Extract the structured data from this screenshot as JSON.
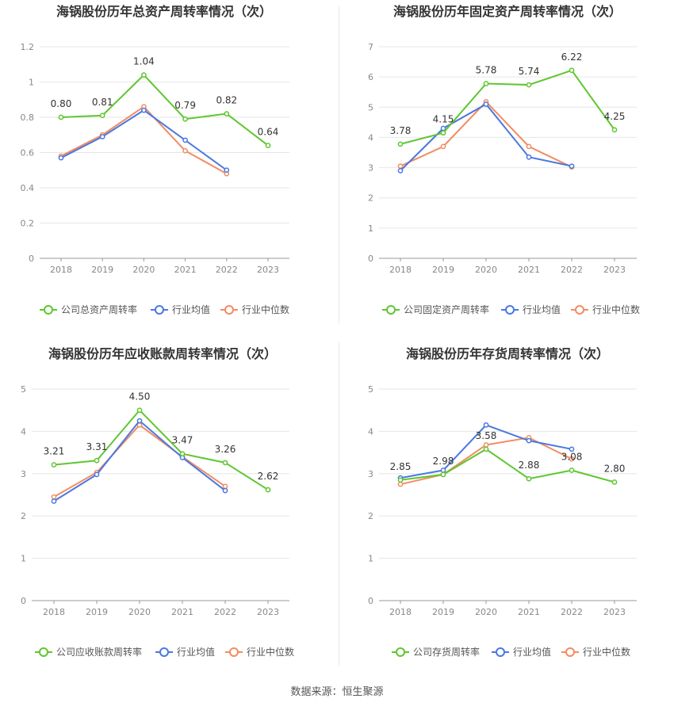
{
  "source_label": "数据来源：恒生聚源",
  "colors": {
    "company": "#5fc630",
    "avg": "#4a78e0",
    "median": "#f28c62"
  },
  "chart_data": [
    {
      "type": "line",
      "title": "海锅股份历年总资产周转率情况（次）",
      "categories": [
        "2018",
        "2019",
        "2020",
        "2021",
        "2022",
        "2023"
      ],
      "ylim": [
        0,
        1.2
      ],
      "yticks": [
        "0",
        "0.2",
        "0.4",
        "0.6",
        "0.8",
        "1",
        "1.2"
      ],
      "grid": true,
      "legend_position": "bottom",
      "series": [
        {
          "name": "公司总资产周转率",
          "role": "company",
          "values": [
            0.8,
            0.81,
            1.04,
            0.79,
            0.82,
            0.64
          ],
          "labels": [
            "0.80",
            "0.81",
            "1.04",
            "0.79",
            "0.82",
            "0.64"
          ]
        },
        {
          "name": "行业均值",
          "role": "avg",
          "values": [
            0.57,
            0.69,
            0.84,
            0.67,
            0.5,
            null
          ]
        },
        {
          "name": "行业中位数",
          "role": "median",
          "values": [
            0.58,
            0.7,
            0.86,
            0.61,
            0.48,
            null
          ]
        }
      ]
    },
    {
      "type": "line",
      "title": "海锅股份历年固定资产周转率情况（次）",
      "categories": [
        "2018",
        "2019",
        "2020",
        "2021",
        "2022",
        "2023"
      ],
      "ylim": [
        0,
        7
      ],
      "yticks": [
        "0",
        "1",
        "2",
        "3",
        "4",
        "5",
        "6",
        "7"
      ],
      "grid": true,
      "legend_position": "bottom",
      "series": [
        {
          "name": "公司固定资产周转率",
          "role": "company",
          "values": [
            3.78,
            4.15,
            5.78,
            5.74,
            6.22,
            4.25
          ],
          "labels": [
            "3.78",
            "4.15",
            "5.78",
            "5.74",
            "6.22",
            "4.25"
          ]
        },
        {
          "name": "行业均值",
          "role": "avg",
          "values": [
            2.9,
            4.3,
            5.1,
            3.35,
            3.05,
            null
          ]
        },
        {
          "name": "行业中位数",
          "role": "median",
          "values": [
            3.05,
            3.7,
            5.18,
            3.7,
            3.02,
            null
          ]
        }
      ]
    },
    {
      "type": "line",
      "title": "海锅股份历年应收账款周转率情况（次）",
      "categories": [
        "2018",
        "2019",
        "2020",
        "2021",
        "2022",
        "2023"
      ],
      "ylim": [
        0,
        5
      ],
      "yticks": [
        "0",
        "1",
        "2",
        "3",
        "4",
        "5"
      ],
      "grid": true,
      "legend_position": "bottom",
      "series": [
        {
          "name": "公司应收账款周转率",
          "role": "company",
          "values": [
            3.21,
            3.31,
            4.5,
            3.47,
            3.26,
            2.62
          ],
          "labels": [
            "3.21",
            "3.31",
            "4.50",
            "3.47",
            "3.26",
            "2.62"
          ]
        },
        {
          "name": "行业均值",
          "role": "avg",
          "values": [
            2.35,
            2.98,
            4.25,
            3.38,
            2.6,
            null
          ]
        },
        {
          "name": "行业中位数",
          "role": "median",
          "values": [
            2.45,
            3.03,
            4.15,
            3.4,
            2.7,
            null
          ]
        }
      ]
    },
    {
      "type": "line",
      "title": "海锅股份历年存货周转率情况（次）",
      "categories": [
        "2018",
        "2019",
        "2020",
        "2021",
        "2022",
        "2023"
      ],
      "ylim": [
        0,
        5
      ],
      "yticks": [
        "0",
        "1",
        "2",
        "3",
        "4",
        "5"
      ],
      "grid": true,
      "legend_position": "bottom",
      "series": [
        {
          "name": "公司存货周转率",
          "role": "company",
          "values": [
            2.85,
            2.98,
            3.58,
            2.88,
            3.08,
            2.8
          ],
          "labels": [
            "2.85",
            "2.98",
            "3.58",
            "2.88",
            "3.08",
            "2.80"
          ]
        },
        {
          "name": "行业均值",
          "role": "avg",
          "values": [
            2.9,
            3.08,
            4.15,
            3.78,
            3.58,
            null
          ]
        },
        {
          "name": "行业中位数",
          "role": "median",
          "values": [
            2.75,
            2.98,
            3.68,
            3.85,
            3.35,
            null
          ]
        }
      ]
    }
  ]
}
